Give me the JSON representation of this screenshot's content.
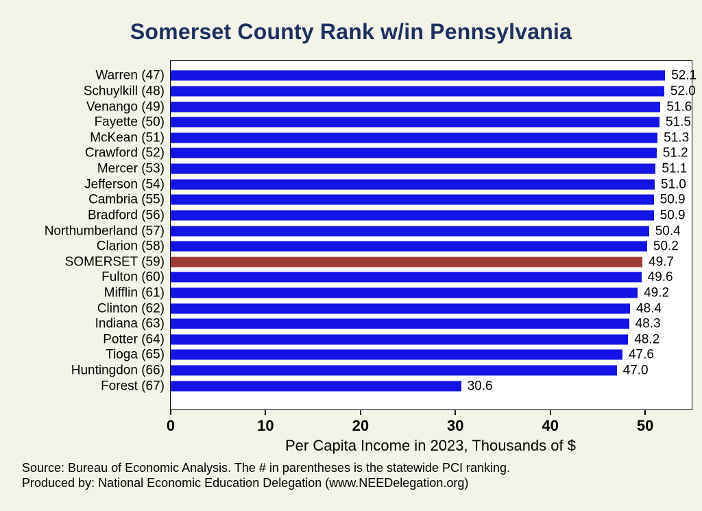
{
  "title": "Somerset County Rank w/in Pennsylvania",
  "footer": {
    "line1": "Source: Bureau of Economic Analysis. The # in parentheses is the statewide PCI ranking.",
    "line2": "Produced by: National Economic Education Delegation (www.NEEDelegation.org)"
  },
  "chart_data": {
    "type": "bar",
    "orientation": "horizontal",
    "title": "Somerset County Rank w/in Pennsylvania",
    "xlabel": "Per Capita Income in 2023, Thousands of $",
    "ylabel": "",
    "categories": [
      "Warren (47)",
      "Schuylkill (48)",
      "Venango (49)",
      "Fayette (50)",
      "McKean (51)",
      "Crawford (52)",
      "Mercer (53)",
      "Jefferson (54)",
      "Cambria (55)",
      "Bradford (56)",
      "Northumberland (57)",
      "Clarion (58)",
      "SOMERSET (59)",
      "Fulton (60)",
      "Mifflin (61)",
      "Clinton (62)",
      "Indiana (63)",
      "Potter (64)",
      "Tioga (65)",
      "Huntingdon (66)",
      "Forest (67)"
    ],
    "values": [
      52.1,
      52.0,
      51.6,
      51.5,
      51.3,
      51.2,
      51.1,
      51.0,
      50.9,
      50.9,
      50.4,
      50.2,
      49.7,
      49.6,
      49.2,
      48.4,
      48.3,
      48.2,
      47.6,
      47.0,
      30.6
    ],
    "value_labels": [
      "52.1",
      "52.0",
      "51.6",
      "51.5",
      "51.3",
      "51.2",
      "51.1",
      "51.0",
      "50.9",
      "50.9",
      "50.4",
      "50.2",
      "49.7",
      "49.6",
      "49.2",
      "48.4",
      "48.3",
      "48.2",
      "47.6",
      "47.0",
      "30.6"
    ],
    "highlight_category": "SOMERSET (59)",
    "highlight_index": 12,
    "bar_color": "#1414e6",
    "highlight_color": "#9e3b32",
    "x_ticks": [
      0,
      10,
      20,
      30,
      40,
      50
    ],
    "xlim": [
      0,
      54.9
    ],
    "grid": false,
    "legend": false
  },
  "colors": {
    "background": "#f4f3e8",
    "plot_background": "#ffffff",
    "title": "#1c3160",
    "axis": "#000000",
    "text": "#000000"
  }
}
